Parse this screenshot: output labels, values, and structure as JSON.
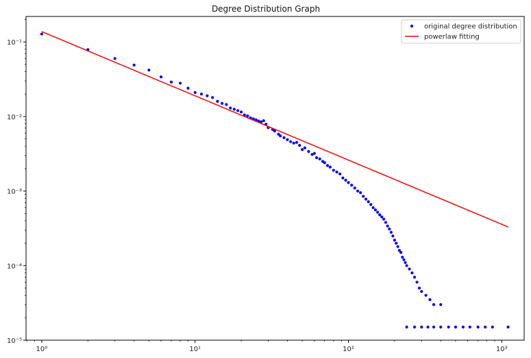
{
  "chart_data": {
    "type": "scatter",
    "title": "Degree Distribution Graph",
    "xlabel": "",
    "ylabel": "",
    "x_scale": "log",
    "y_scale": "log",
    "xlim": [
      0.79,
      1400
    ],
    "ylim": [
      1e-05,
      0.22
    ],
    "x_ticks": [
      {
        "value": 1,
        "label": "10⁰"
      },
      {
        "value": 10,
        "label": "10¹"
      },
      {
        "value": 100,
        "label": "10²"
      },
      {
        "value": 1000,
        "label": "10³"
      }
    ],
    "y_ticks": [
      {
        "value": 1e-05,
        "label": "10⁻⁵"
      },
      {
        "value": 0.0001,
        "label": "10⁻⁴"
      },
      {
        "value": 0.001,
        "label": "10⁻³"
      },
      {
        "value": 0.01,
        "label": "10⁻²"
      },
      {
        "value": 0.1,
        "label": "10⁻¹"
      }
    ],
    "grid": false,
    "legend": {
      "placement": "top-right",
      "entries": [
        {
          "label": "original degree distribution",
          "marker": "dot",
          "color": "#0000ff"
        },
        {
          "label": "powerlaw fitting",
          "marker": "line",
          "color": "#ff0000"
        }
      ]
    },
    "series": [
      {
        "name": "original degree distribution",
        "kind": "points",
        "color": "#0000ff",
        "points": [
          [
            1,
            0.128
          ],
          [
            2,
            0.079
          ],
          [
            3,
            0.06
          ],
          [
            4,
            0.049
          ],
          [
            5,
            0.042
          ],
          [
            6,
            0.034
          ],
          [
            7,
            0.029
          ],
          [
            8,
            0.028
          ],
          [
            9,
            0.024
          ],
          [
            10,
            0.021
          ],
          [
            11,
            0.02
          ],
          [
            12,
            0.019
          ],
          [
            13,
            0.018
          ],
          [
            14,
            0.016
          ],
          [
            15,
            0.015
          ],
          [
            16,
            0.0145
          ],
          [
            17,
            0.013
          ],
          [
            18,
            0.0125
          ],
          [
            19,
            0.012
          ],
          [
            20,
            0.0115
          ],
          [
            21,
            0.0105
          ],
          [
            22,
            0.0102
          ],
          [
            23,
            0.0096
          ],
          [
            24,
            0.0093
          ],
          [
            25,
            0.009
          ],
          [
            26,
            0.0087
          ],
          [
            27,
            0.0085
          ],
          [
            28,
            0.0088
          ],
          [
            29,
            0.0079
          ],
          [
            30,
            0.0071
          ],
          [
            32,
            0.0067
          ],
          [
            33,
            0.0064
          ],
          [
            35,
            0.0058
          ],
          [
            36,
            0.0055
          ],
          [
            38,
            0.0052
          ],
          [
            40,
            0.0049
          ],
          [
            42,
            0.0046
          ],
          [
            44,
            0.0044
          ],
          [
            46,
            0.0045
          ],
          [
            48,
            0.0041
          ],
          [
            50,
            0.0036
          ],
          [
            52,
            0.0038
          ],
          [
            55,
            0.0034
          ],
          [
            58,
            0.0031
          ],
          [
            60,
            0.0032
          ],
          [
            62,
            0.0028
          ],
          [
            65,
            0.0027
          ],
          [
            68,
            0.0025
          ],
          [
            70,
            0.0024
          ],
          [
            73,
            0.0022
          ],
          [
            76,
            0.0021
          ],
          [
            80,
            0.0019
          ],
          [
            84,
            0.0018
          ],
          [
            88,
            0.0017
          ],
          [
            92,
            0.0015
          ],
          [
            96,
            0.0014
          ],
          [
            100,
            0.0013
          ],
          [
            105,
            0.0012
          ],
          [
            110,
            0.0011
          ],
          [
            115,
            0.001
          ],
          [
            120,
            0.00095
          ],
          [
            125,
            0.00085
          ],
          [
            130,
            0.00078
          ],
          [
            135,
            0.00072
          ],
          [
            140,
            0.00066
          ],
          [
            145,
            0.0006
          ],
          [
            150,
            0.00056
          ],
          [
            155,
            0.00052
          ],
          [
            160,
            0.00048
          ],
          [
            165,
            0.00045
          ],
          [
            170,
            0.00042
          ],
          [
            175,
            0.00038
          ],
          [
            180,
            0.00034
          ],
          [
            185,
            0.00031
          ],
          [
            190,
            0.00028
          ],
          [
            195,
            0.00025
          ],
          [
            200,
            0.00022
          ],
          [
            205,
            0.0002
          ],
          [
            210,
            0.00018
          ],
          [
            215,
            0.00016
          ],
          [
            220,
            0.00015
          ],
          [
            225,
            0.00013
          ],
          [
            230,
            0.00012
          ],
          [
            235,
            0.00011
          ],
          [
            240,
            0.0001
          ],
          [
            250,
            9e-05
          ],
          [
            260,
            8e-05
          ],
          [
            270,
            7e-05
          ],
          [
            280,
            6e-05
          ],
          [
            290,
            5e-05
          ],
          [
            300,
            4.5e-05
          ],
          [
            320,
            4e-05
          ],
          [
            340,
            3.5e-05
          ],
          [
            360,
            3e-05
          ],
          [
            400,
            3e-05
          ],
          [
            240,
            1.5e-05
          ],
          [
            270,
            1.5e-05
          ],
          [
            300,
            1.5e-05
          ],
          [
            330,
            1.5e-05
          ],
          [
            360,
            1.5e-05
          ],
          [
            400,
            1.5e-05
          ],
          [
            450,
            1.5e-05
          ],
          [
            500,
            1.5e-05
          ],
          [
            560,
            1.5e-05
          ],
          [
            620,
            1.5e-05
          ],
          [
            700,
            1.5e-05
          ],
          [
            780,
            1.5e-05
          ],
          [
            870,
            1.5e-05
          ],
          [
            1100,
            1.5e-05
          ]
        ]
      },
      {
        "name": "powerlaw fitting",
        "kind": "line",
        "color": "#ff0000",
        "points": [
          [
            1,
            0.138
          ],
          [
            1100,
            0.00033
          ]
        ]
      }
    ]
  }
}
